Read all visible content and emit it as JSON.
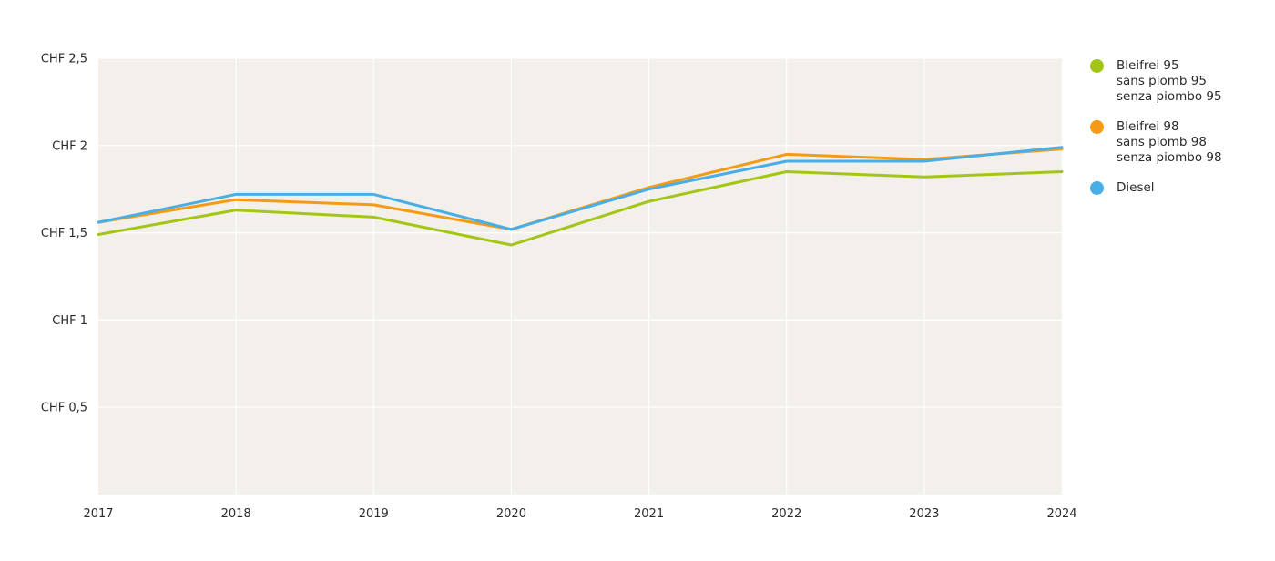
{
  "chart_data": {
    "type": "line",
    "title": "",
    "xlabel": "",
    "ylabel": "",
    "x": [
      "2017",
      "2018",
      "2019",
      "2020",
      "2021",
      "2022",
      "2023",
      "2024"
    ],
    "y_ticks": [
      {
        "value": 0.5,
        "label": "CHF 0,5"
      },
      {
        "value": 1,
        "label": "CHF 1"
      },
      {
        "value": 1.5,
        "label": "CHF 1,5"
      },
      {
        "value": 2,
        "label": "CHF 2"
      },
      {
        "value": 2.5,
        "label": "CHF 2,5"
      }
    ],
    "ylim": [
      0,
      2.5
    ],
    "grid": true,
    "legend_position": "right",
    "background_color": "#f3efea",
    "series": [
      {
        "key": "bleifrei-95",
        "name_lines": [
          "Bleifrei 95",
          "sans plomb 95",
          "senza piombo 95"
        ],
        "color": "#a3c614",
        "values": [
          1.49,
          1.63,
          1.59,
          1.43,
          1.68,
          1.85,
          1.82,
          1.85
        ]
      },
      {
        "key": "bleifrei-98",
        "name_lines": [
          "Bleifrei 98",
          "sans plomb 98",
          "senza piombo 98"
        ],
        "color": "#f59a13",
        "values": [
          1.56,
          1.69,
          1.66,
          1.52,
          1.76,
          1.95,
          1.92,
          1.98
        ]
      },
      {
        "key": "diesel",
        "name_lines": [
          "Diesel"
        ],
        "color": "#4aaee6",
        "values": [
          1.56,
          1.72,
          1.72,
          1.52,
          1.75,
          1.91,
          1.91,
          1.99
        ]
      }
    ]
  }
}
